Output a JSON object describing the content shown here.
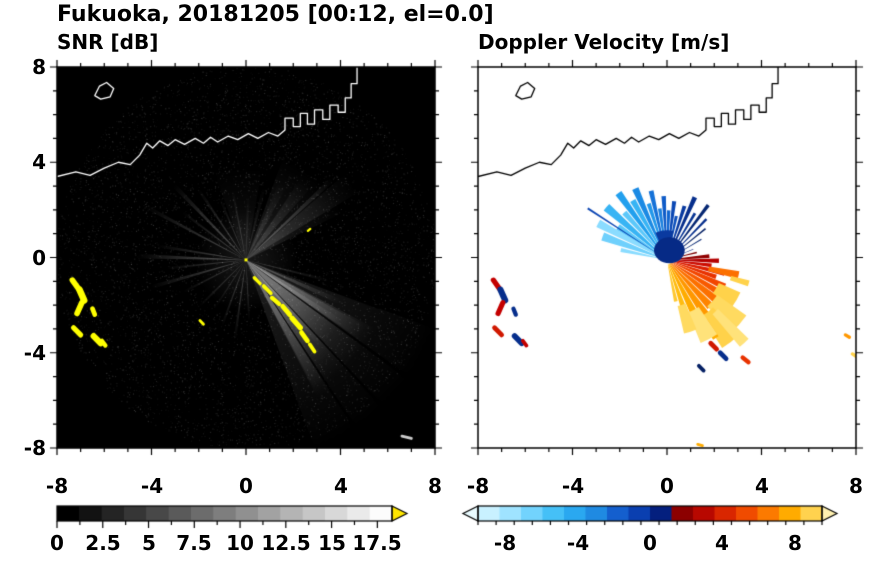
{
  "title": "Fukuoka, 20181205 [00:12, el=0.0]",
  "meta": {
    "station": "Fukuoka",
    "date": "20181205",
    "time": "00:12",
    "elevation": "0.0"
  },
  "chart_data": {
    "type": "heatmap",
    "description": "Dual-panel Doppler radar PPI display centered on the radar at (0,0). Left: SNR [dB] on black background with radial beam streaks, white coastline of Hakata Bay, and yellow high-SNR echo arcs. Right: Doppler Velocity [m/s] on white background, blue (negative, toward) fan to the upper-left/up and red-orange-yellow (positive, away) fan to the lower-right, black coastline.",
    "coastline": [
      [
        -8,
        3.4
      ],
      [
        -7.2,
        3.6
      ],
      [
        -6.6,
        3.45
      ],
      [
        -6.0,
        3.75
      ],
      [
        -5.4,
        4.0
      ],
      [
        -4.9,
        3.9
      ],
      [
        -4.5,
        4.3
      ],
      [
        -4.2,
        4.8
      ],
      [
        -3.95,
        4.6
      ],
      [
        -3.65,
        4.9
      ],
      [
        -3.3,
        4.7
      ],
      [
        -3.0,
        4.95
      ],
      [
        -2.6,
        4.75
      ],
      [
        -2.15,
        5.0
      ],
      [
        -1.8,
        4.8
      ],
      [
        -1.5,
        5.05
      ],
      [
        -1.2,
        4.85
      ],
      [
        -0.75,
        5.1
      ],
      [
        -0.35,
        4.95
      ],
      [
        0.1,
        5.2
      ],
      [
        0.5,
        5.0
      ],
      [
        0.95,
        5.25
      ],
      [
        1.35,
        5.1
      ],
      [
        1.65,
        5.35
      ],
      [
        1.65,
        5.85
      ],
      [
        2.0,
        5.85
      ],
      [
        2.0,
        5.5
      ],
      [
        2.3,
        5.5
      ],
      [
        2.3,
        6.05
      ],
      [
        2.6,
        6.05
      ],
      [
        2.6,
        5.6
      ],
      [
        2.9,
        5.6
      ],
      [
        2.9,
        6.2
      ],
      [
        3.25,
        6.2
      ],
      [
        3.25,
        5.8
      ],
      [
        3.55,
        5.8
      ],
      [
        3.55,
        6.4
      ],
      [
        3.9,
        6.4
      ],
      [
        3.9,
        6.1
      ],
      [
        4.2,
        6.1
      ],
      [
        4.2,
        6.7
      ],
      [
        4.45,
        6.7
      ],
      [
        4.45,
        7.3
      ],
      [
        4.7,
        7.3
      ],
      [
        4.7,
        8.2
      ]
    ],
    "island": [
      [
        -6.4,
        6.8
      ],
      [
        -6.2,
        7.2
      ],
      [
        -5.9,
        7.35
      ],
      [
        -5.6,
        7.1
      ],
      [
        -5.75,
        6.75
      ],
      [
        -6.15,
        6.65
      ]
    ],
    "panels": [
      {
        "title": "SNR [dB]",
        "x_range": [
          -8,
          8
        ],
        "y_range": [
          -8,
          8
        ],
        "xticks": [
          -8,
          -4,
          0,
          4,
          8
        ],
        "yticks": [
          8,
          4,
          0,
          -4,
          -8
        ],
        "xtick_labels": [
          "-8",
          "-4",
          "0",
          "4",
          "8"
        ],
        "ytick_labels": [
          "8",
          "4",
          "0",
          "-4",
          "-8"
        ],
        "background": "#000000",
        "coast_color": "#ffffff",
        "center": [
          0,
          -0.1
        ],
        "center_dot": "#ffff00",
        "noise": true,
        "halo": {
          "r": 2.2,
          "alpha": 0.1
        },
        "streaks": [
          [
            -45,
            50,
            8.6,
            0.09
          ],
          [
            -45,
            34,
            6.2,
            0.2
          ],
          [
            -41,
            18,
            4.8,
            0.22
          ],
          [
            -52,
            10,
            5.4,
            0.18
          ],
          [
            -32,
            6,
            5.8,
            0.22
          ],
          [
            -60,
            5,
            6.6,
            0.2
          ],
          [
            -24,
            3,
            4.4,
            0.22
          ],
          [
            -14,
            2,
            3.6,
            0.16
          ],
          [
            48,
            44,
            4.6,
            0.09
          ],
          [
            95,
            30,
            4.0,
            0.05
          ],
          [
            36,
            10,
            5.6,
            0.12
          ],
          [
            52,
            8,
            4.2,
            0.12
          ],
          [
            64,
            6,
            3.6,
            0.1
          ],
          [
            43,
            2.5,
            5.0,
            0.26
          ],
          [
            76,
            3,
            3.2,
            0.1
          ],
          [
            88,
            2.5,
            2.7,
            0.12
          ],
          [
            178,
            2.5,
            4.6,
            0.28
          ],
          [
            171,
            2,
            3.8,
            0.22
          ],
          [
            186,
            2,
            3.4,
            0.2
          ],
          [
            196,
            2.5,
            4.2,
            0.22
          ],
          [
            207,
            2,
            3.0,
            0.18
          ],
          [
            152,
            2,
            4.8,
            0.22
          ],
          [
            143,
            2,
            3.4,
            0.2
          ],
          [
            134,
            2.5,
            4.4,
            0.26
          ],
          [
            124,
            2,
            3.6,
            0.22
          ],
          [
            113,
            2,
            2.8,
            0.18
          ],
          [
            101,
            2,
            3.0,
            0.18
          ],
          [
            262,
            2,
            3.4,
            0.22
          ],
          [
            273,
            2,
            2.6,
            0.18
          ],
          [
            250,
            2,
            3.0,
            0.2
          ],
          [
            237,
            2,
            2.4,
            0.16
          ],
          [
            225,
            2,
            2.8,
            0.18
          ]
        ],
        "spokes": [
          [
            -36,
            1,
            8.6
          ],
          [
            -47,
            0.8,
            8.6
          ],
          [
            -57,
            0.8,
            8.6
          ],
          [
            -20,
            0.8,
            6
          ],
          [
            168,
            0.7,
            5
          ],
          [
            140,
            0.6,
            4.5
          ]
        ],
        "patch_color": "#ffff00",
        "patches": [
          [
            0.35,
            -0.85,
            0.6,
            -1.1,
            0.14
          ],
          [
            0.75,
            -1.2,
            1.05,
            -1.5,
            0.16
          ],
          [
            1.1,
            -1.7,
            1.4,
            -1.95,
            0.18
          ],
          [
            1.55,
            -2.05,
            1.85,
            -2.4,
            0.2
          ],
          [
            1.95,
            -2.55,
            2.3,
            -2.95,
            0.22
          ],
          [
            2.35,
            -3.15,
            2.6,
            -3.5,
            0.2
          ],
          [
            2.7,
            -3.65,
            2.9,
            -3.95,
            0.16
          ],
          [
            -1.95,
            -2.65,
            -1.8,
            -2.8,
            0.12
          ],
          [
            2.62,
            1.12,
            2.72,
            1.2,
            0.1
          ],
          [
            -7.35,
            -0.95,
            -7.1,
            -1.3,
            0.24
          ],
          [
            -7.05,
            -1.35,
            -6.85,
            -1.8,
            0.28
          ],
          [
            -6.95,
            -1.9,
            -7.15,
            -2.35,
            0.24
          ],
          [
            -6.5,
            -2.15,
            -6.4,
            -2.4,
            0.2
          ],
          [
            -7.3,
            -2.95,
            -7.0,
            -3.25,
            0.22
          ],
          [
            -6.45,
            -3.3,
            -6.15,
            -3.6,
            0.26
          ],
          [
            -6.1,
            -3.5,
            -5.95,
            -3.7,
            0.18
          ],
          [
            6.6,
            -7.5,
            7.0,
            -7.6,
            0.12,
            "#cccccc"
          ]
        ],
        "colorbar": {
          "range": [
            0,
            18.3
          ],
          "ticks": [
            0,
            2.5,
            5,
            7.5,
            10,
            12.5,
            15,
            17.5
          ],
          "tick_labels": [
            "0",
            "2.5",
            "5",
            "7.5",
            "10",
            "12.5",
            "15",
            "17.5"
          ],
          "minor_step": 1.25,
          "colors": [
            "#000000",
            "#121212",
            "#242424",
            "#363636",
            "#484848",
            "#5a5a5a",
            "#6c6c6c",
            "#7e7e7e",
            "#909090",
            "#a2a2a2",
            "#b4b4b4",
            "#c6c6c6",
            "#d8d8d8",
            "#eaeaea",
            "#fcfcfc"
          ],
          "over_arrow": "#ffe600"
        }
      },
      {
        "title": "Doppler Velocity [m/s]",
        "x_range": [
          -8,
          8
        ],
        "y_range": [
          -8,
          8
        ],
        "xticks": [
          -8,
          -4,
          0,
          4,
          8
        ],
        "xtick_labels": [
          "-8",
          "-4",
          "0",
          "4",
          "8"
        ],
        "background": "#ffffff",
        "coast_color": "#000000",
        "center": [
          0,
          -0.1
        ],
        "core": {
          "c": [
            0.1,
            0.3
          ],
          "rx": 0.65,
          "ry": 0.55,
          "color": "#062a86"
        },
        "wedges": [
          [
            168,
            5,
            0.2,
            2.0,
            "#8adcff"
          ],
          [
            160,
            7,
            0.2,
            2.9,
            "#6fd0fc"
          ],
          [
            152,
            6,
            0.2,
            3.3,
            "#8adcff"
          ],
          [
            146,
            6,
            0.2,
            2.5,
            "#5cc8fa"
          ],
          [
            147,
            1.2,
            0.2,
            4.0,
            "#0c46b4"
          ],
          [
            139,
            6,
            0.2,
            3.4,
            "#38b4f4"
          ],
          [
            132,
            5,
            0.2,
            2.7,
            "#5cc8fa"
          ],
          [
            126,
            5,
            0.2,
            3.5,
            "#22a0ee"
          ],
          [
            120,
            5,
            0.2,
            2.9,
            "#38b4f4"
          ],
          [
            114,
            5,
            0.2,
            3.3,
            "#1b8ae4"
          ],
          [
            108,
            4,
            0.2,
            2.5,
            "#2298ea"
          ],
          [
            103,
            4,
            0.2,
            3.0,
            "#1572d8"
          ],
          [
            98,
            4,
            0.2,
            2.2,
            "#1b80de"
          ],
          [
            93,
            4,
            0.2,
            2.7,
            "#0f5cc8"
          ],
          [
            88,
            4,
            0.2,
            2.1,
            "#1166d0"
          ],
          [
            83,
            4,
            0.2,
            2.5,
            "#0b48b4"
          ],
          [
            78,
            4,
            0.2,
            1.9,
            "#0d50bc"
          ],
          [
            72,
            4,
            0.2,
            2.4,
            "#083aa0"
          ],
          [
            66,
            4,
            0.2,
            2.9,
            "#062e8c"
          ],
          [
            59,
            3,
            0.2,
            2.3,
            "#073494"
          ],
          [
            53,
            3,
            0.2,
            2.9,
            "#052672"
          ],
          [
            46,
            2.5,
            0.2,
            2.4,
            "#062e8c"
          ],
          [
            39,
            2,
            0.2,
            2.1,
            "#052064"
          ],
          [
            31,
            1.5,
            0.2,
            1.7,
            "#052672"
          ],
          [
            22,
            1.5,
            0.2,
            1.2,
            "#041f7e"
          ],
          [
            95,
            36,
            0,
            1.25,
            "#0a3aa0"
          ],
          [
            14,
            3,
            0.2,
            1.3,
            "#7c0000"
          ],
          [
            5,
            5,
            0.2,
            1.8,
            "#900000"
          ],
          [
            -1,
            5,
            0.2,
            2.2,
            "#b40000"
          ],
          [
            -7,
            5,
            0.2,
            1.9,
            "#cc0c00"
          ],
          [
            -13,
            5,
            0.2,
            2.5,
            "#dc1e00"
          ],
          [
            -19,
            5,
            0.2,
            2.2,
            "#e83200"
          ],
          [
            -25,
            6,
            0.2,
            2.7,
            "#f24600"
          ],
          [
            -32,
            6,
            0.2,
            2.5,
            "#f85a00"
          ],
          [
            -39,
            7,
            0.2,
            2.9,
            "#fc7000"
          ],
          [
            -47,
            7,
            0.2,
            2.7,
            "#ff8400"
          ],
          [
            -55,
            7,
            0.2,
            3.0,
            "#ff9800"
          ],
          [
            -63,
            7,
            0.2,
            2.6,
            "#ffac00"
          ],
          [
            -71,
            6,
            0.2,
            2.3,
            "#ffbc10"
          ],
          [
            -78,
            5,
            0.2,
            1.8,
            "#ffc830"
          ],
          [
            -12,
            6,
            1.8,
            3.1,
            "#fc7000"
          ],
          [
            -16,
            4,
            2.8,
            3.6,
            "#ffd24a"
          ],
          [
            -30,
            12,
            2.4,
            3.4,
            "#ffd24a"
          ],
          [
            -42,
            14,
            2.6,
            4.1,
            "#ffda60"
          ],
          [
            -52,
            12,
            2.8,
            4.4,
            "#ffd24a"
          ],
          [
            -58,
            4,
            3.0,
            3.9,
            "#ffac00"
          ],
          [
            -62,
            12,
            2.4,
            3.8,
            "#ffe27a"
          ],
          [
            -72,
            10,
            2.0,
            3.2,
            "#ffda60"
          ],
          [
            -47,
            6,
            3.0,
            4.8,
            "#ffe27a"
          ]
        ],
        "patches": [
          [
            -7.35,
            -0.95,
            -7.1,
            -1.3,
            0.22,
            "#c40000"
          ],
          [
            -7.05,
            -1.35,
            -6.85,
            -1.8,
            0.26,
            "#062e8c"
          ],
          [
            -6.95,
            -1.9,
            -7.15,
            -2.35,
            0.22,
            "#c40000"
          ],
          [
            -6.5,
            -2.15,
            -6.4,
            -2.4,
            0.18,
            "#062e8c"
          ],
          [
            -7.3,
            -2.95,
            -7.0,
            -3.25,
            0.2,
            "#d01800"
          ],
          [
            -6.45,
            -3.3,
            -6.15,
            -3.6,
            0.24,
            "#062e8c"
          ],
          [
            -6.1,
            -3.5,
            -5.95,
            -3.7,
            0.16,
            "#c40000"
          ],
          [
            1.85,
            -3.6,
            2.1,
            -3.85,
            0.2,
            "#d01800"
          ],
          [
            2.25,
            -4.0,
            2.5,
            -4.25,
            0.2,
            "#062e8c"
          ],
          [
            3.2,
            -4.2,
            3.45,
            -4.4,
            0.18,
            "#e83200"
          ],
          [
            1.35,
            -4.55,
            1.55,
            -4.75,
            0.16,
            "#052064"
          ],
          [
            7.55,
            -3.25,
            7.72,
            -3.35,
            0.14,
            "#ff9800"
          ],
          [
            7.85,
            -4.05,
            8.0,
            -4.15,
            0.14,
            "#ffd24a"
          ],
          [
            1.3,
            -7.85,
            1.5,
            -7.9,
            0.12,
            "#ffac00"
          ]
        ],
        "colorbar": {
          "range": [
            -9.5,
            9.5
          ],
          "ticks": [
            -8,
            -4,
            0,
            4,
            8
          ],
          "tick_labels": [
            "-8",
            "-4",
            "0",
            "4",
            "8"
          ],
          "minor_step": 1,
          "colors": [
            "#c9f1ff",
            "#9fe3ff",
            "#72d3fd",
            "#45c0f7",
            "#2aa8f0",
            "#1f8ae2",
            "#145fce",
            "#0a3fb0",
            "#041f7e",
            "#8c0000",
            "#b80800",
            "#d92600",
            "#f04b00",
            "#fc7a00",
            "#ffab00",
            "#ffd24e"
          ],
          "under_arrow": "#e9fbff",
          "over_arrow": "#fff0b0"
        }
      }
    ]
  }
}
